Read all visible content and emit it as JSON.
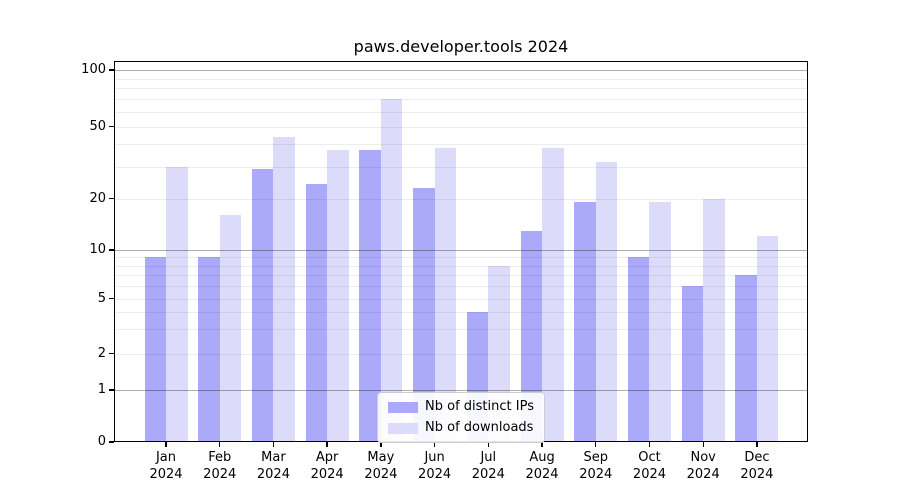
{
  "chart_data": {
    "type": "bar",
    "title": "paws.developer.tools 2024",
    "categories": [
      "Jan",
      "Feb",
      "Mar",
      "Apr",
      "May",
      "Jun",
      "Jul",
      "Aug",
      "Sep",
      "Oct",
      "Nov",
      "Dec"
    ],
    "x_tick_year": "2024",
    "series": [
      {
        "name": "Nb of distinct IPs",
        "color": "#aaaaf8",
        "values": [
          9,
          9,
          29,
          24,
          37,
          23,
          4,
          13,
          19,
          9,
          6,
          7
        ]
      },
      {
        "name": "Nb of downloads",
        "color": "#dcdcfa",
        "values": [
          30,
          16,
          44,
          37,
          70,
          38,
          8,
          38,
          32,
          19,
          20,
          12
        ]
      }
    ],
    "y_axis": {
      "scale": "log-above-1-linear-below",
      "tick_labels": [
        "100",
        "50",
        "20",
        "10",
        "5",
        "2",
        "1",
        "0"
      ],
      "tick_values": [
        100,
        50,
        20,
        10,
        5,
        2,
        1,
        0
      ],
      "major_gridlines": [
        1,
        10,
        100
      ],
      "minor_gridlines": [
        2,
        3,
        4,
        5,
        6,
        7,
        8,
        9,
        20,
        30,
        40,
        50,
        60,
        70,
        80,
        90
      ],
      "ylim": [
        0,
        100
      ]
    },
    "legend": {
      "position": "lower-center",
      "entries": [
        "Nb of distinct IPs",
        "Nb of downloads"
      ]
    },
    "grid": true
  },
  "colors": {
    "bar_distinct_ips": "#aaaaf8",
    "bar_downloads": "#dcdcfa",
    "axis": "#000000",
    "major_grid": "rgba(0,0,0,0.32)",
    "minor_grid": "rgba(0,0,0,0.07)",
    "legend_border": "#cccccc",
    "background": "#ffffff"
  }
}
